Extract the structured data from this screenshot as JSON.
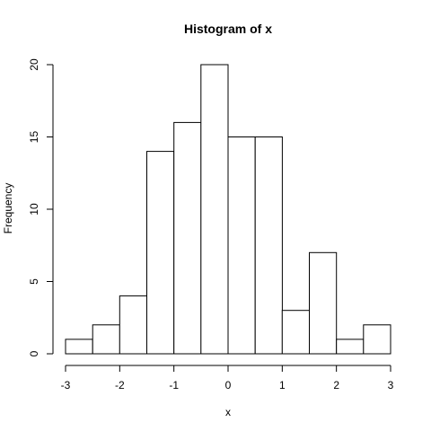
{
  "chart_data": {
    "type": "bar",
    "title": "Histogram of x",
    "xlabel": "x",
    "ylabel": "Frequency",
    "bins": [
      {
        "start": -3.0,
        "end": -2.5,
        "count": 1
      },
      {
        "start": -2.5,
        "end": -2.0,
        "count": 2
      },
      {
        "start": -2.0,
        "end": -1.5,
        "count": 4
      },
      {
        "start": -1.5,
        "end": -1.0,
        "count": 14
      },
      {
        "start": -1.0,
        "end": -0.5,
        "count": 16
      },
      {
        "start": -0.5,
        "end": 0.0,
        "count": 20
      },
      {
        "start": 0.0,
        "end": 0.5,
        "count": 15
      },
      {
        "start": 0.5,
        "end": 1.0,
        "count": 15
      },
      {
        "start": 1.0,
        "end": 1.5,
        "count": 3
      },
      {
        "start": 1.5,
        "end": 2.0,
        "count": 7
      },
      {
        "start": 2.0,
        "end": 2.5,
        "count": 1
      },
      {
        "start": 2.5,
        "end": 3.0,
        "count": 2
      }
    ],
    "xlim": [
      -3,
      3
    ],
    "ylim": [
      0,
      20
    ],
    "x_ticks": [
      "-3",
      "-2",
      "-1",
      "0",
      "1",
      "2",
      "3"
    ],
    "y_ticks": [
      "0",
      "5",
      "10",
      "15",
      "20"
    ],
    "grid": false,
    "legend": "none"
  }
}
